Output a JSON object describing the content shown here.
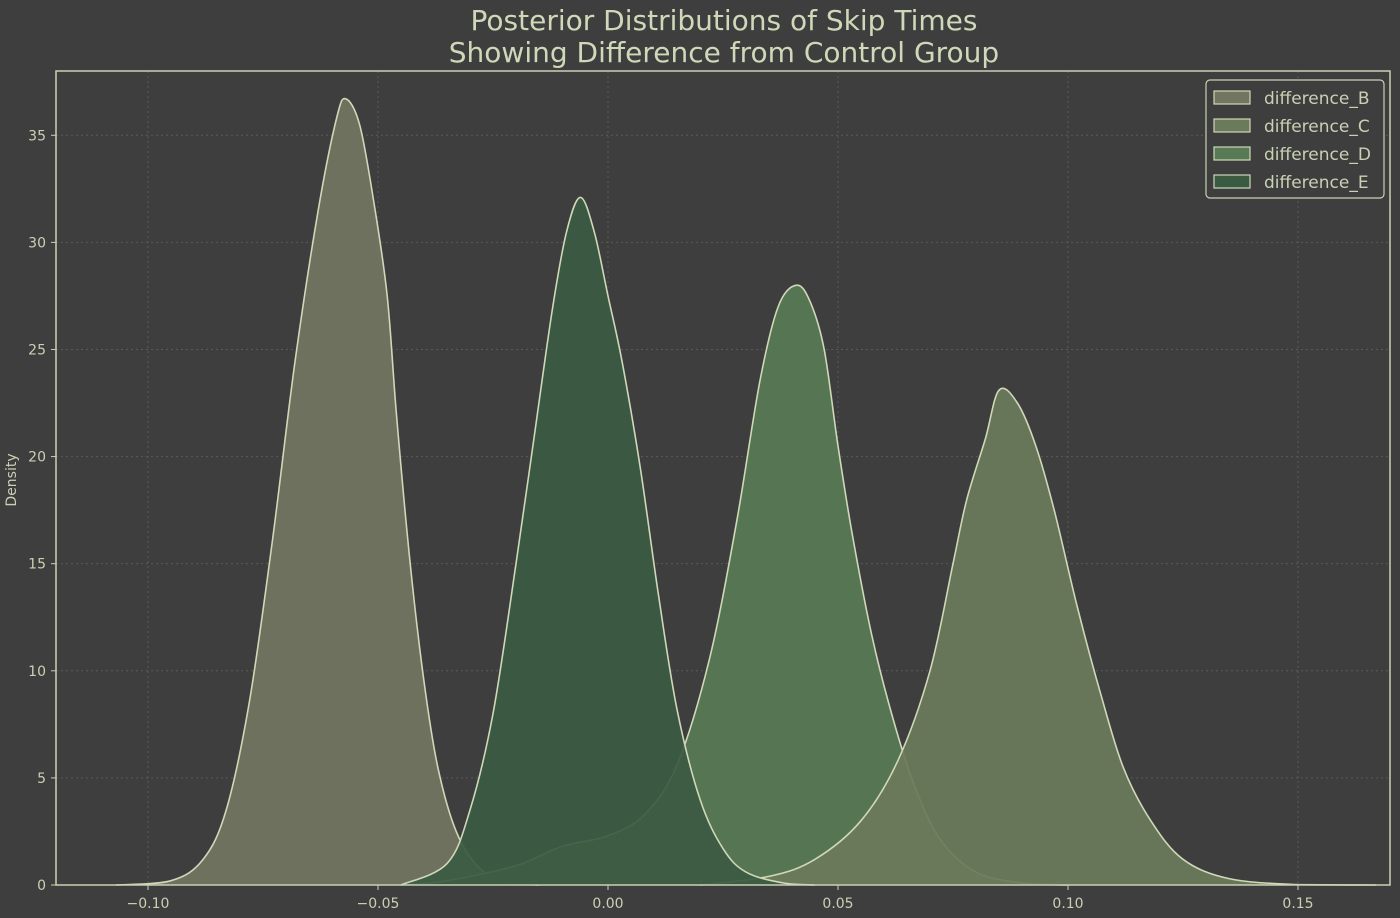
{
  "chart_data": {
    "type": "area",
    "title_line1": "Posterior Distributions of Skip Times",
    "title_line2": "Showing Difference from Control Group",
    "xlabel": "",
    "ylabel": "Density",
    "xlim": [
      -0.12,
      0.17
    ],
    "ylim": [
      0,
      38
    ],
    "grid": true,
    "legend_position": "top-right",
    "x_ticks": [
      -0.1,
      -0.05,
      0.0,
      0.05,
      0.1,
      0.15
    ],
    "x_tick_labels": [
      "−0.10",
      "−0.05",
      "0.00",
      "0.05",
      "0.10",
      "0.15"
    ],
    "y_ticks": [
      0,
      5,
      10,
      15,
      20,
      25,
      30,
      35
    ],
    "y_tick_labels": [
      "0",
      "5",
      "10",
      "15",
      "20",
      "25",
      "30",
      "35"
    ],
    "series": [
      {
        "name": "difference_B",
        "fill": "#727560",
        "points": [
          [
            -0.107,
            0
          ],
          [
            -0.095,
            0.2
          ],
          [
            -0.088,
            1.2
          ],
          [
            -0.083,
            3.5
          ],
          [
            -0.078,
            8.5
          ],
          [
            -0.073,
            16
          ],
          [
            -0.068,
            24.5
          ],
          [
            -0.063,
            31.5
          ],
          [
            -0.059,
            35.8
          ],
          [
            -0.057,
            36.7
          ],
          [
            -0.054,
            35.5
          ],
          [
            -0.051,
            32
          ],
          [
            -0.048,
            27.5
          ],
          [
            -0.046,
            22
          ],
          [
            -0.043,
            15
          ],
          [
            -0.04,
            9.5
          ],
          [
            -0.037,
            5.5
          ],
          [
            -0.033,
            2.5
          ],
          [
            -0.028,
            0.8
          ],
          [
            -0.022,
            0.15
          ],
          [
            -0.015,
            0
          ]
        ]
      },
      {
        "name": "difference_C",
        "fill": "#6a7a5a",
        "points": [
          [
            0.02,
            0
          ],
          [
            0.035,
            0.4
          ],
          [
            0.045,
            1.2
          ],
          [
            0.055,
            3
          ],
          [
            0.063,
            5.8
          ],
          [
            0.07,
            10
          ],
          [
            0.075,
            15
          ],
          [
            0.078,
            18
          ],
          [
            0.082,
            20.8
          ],
          [
            0.085,
            23.1
          ],
          [
            0.089,
            22.5
          ],
          [
            0.093,
            20.5
          ],
          [
            0.097,
            17.5
          ],
          [
            0.102,
            13
          ],
          [
            0.107,
            9
          ],
          [
            0.112,
            5.5
          ],
          [
            0.118,
            3
          ],
          [
            0.125,
            1.2
          ],
          [
            0.135,
            0.3
          ],
          [
            0.15,
            0.02
          ],
          [
            0.167,
            0
          ]
        ]
      },
      {
        "name": "difference_D",
        "fill": "#587a54",
        "points": [
          [
            -0.045,
            0
          ],
          [
            -0.035,
            0.2
          ],
          [
            -0.02,
            0.9
          ],
          [
            -0.01,
            1.8
          ],
          [
            0,
            2.3
          ],
          [
            0.008,
            3.3
          ],
          [
            0.015,
            5.6
          ],
          [
            0.022,
            10.5
          ],
          [
            0.028,
            17
          ],
          [
            0.033,
            23.5
          ],
          [
            0.037,
            27
          ],
          [
            0.041,
            28
          ],
          [
            0.044,
            27.2
          ],
          [
            0.047,
            25
          ],
          [
            0.05,
            20.5
          ],
          [
            0.053,
            16.5
          ],
          [
            0.057,
            12
          ],
          [
            0.061,
            8.5
          ],
          [
            0.066,
            5
          ],
          [
            0.072,
            2.2
          ],
          [
            0.08,
            0.6
          ],
          [
            0.09,
            0.1
          ],
          [
            0.1,
            0
          ]
        ]
      },
      {
        "name": "difference_E",
        "fill": "#3b5a42",
        "points": [
          [
            -0.045,
            0
          ],
          [
            -0.035,
            1
          ],
          [
            -0.03,
            3.5
          ],
          [
            -0.025,
            8
          ],
          [
            -0.02,
            15
          ],
          [
            -0.016,
            21
          ],
          [
            -0.012,
            27
          ],
          [
            -0.009,
            30.5
          ],
          [
            -0.006,
            32.1
          ],
          [
            -0.003,
            30.5
          ],
          [
            0,
            27.5
          ],
          [
            0.003,
            24.5
          ],
          [
            0.007,
            19.5
          ],
          [
            0.011,
            13.5
          ],
          [
            0.015,
            8.2
          ],
          [
            0.02,
            4
          ],
          [
            0.025,
            1.7
          ],
          [
            0.03,
            0.6
          ],
          [
            0.038,
            0.1
          ],
          [
            0.045,
            0
          ]
        ]
      }
    ]
  }
}
